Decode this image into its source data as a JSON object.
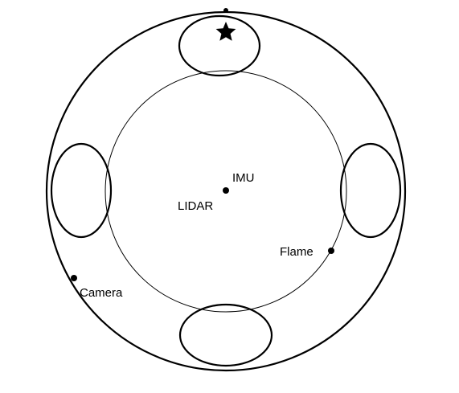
{
  "diagram": {
    "sensors": {
      "imu_label": "IMU",
      "lidar_label": "LIDAR",
      "flame_label": "Flame",
      "camera_label": "Camera"
    },
    "colors": {
      "line": "#000000",
      "background": "#ffffff"
    },
    "icons": {
      "front_marker": "star-icon"
    }
  }
}
